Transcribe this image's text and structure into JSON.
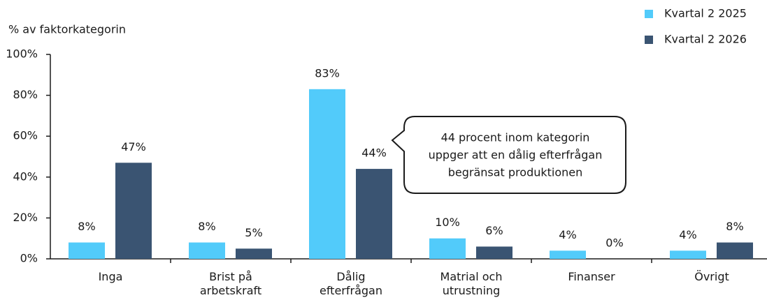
{
  "chart_data": {
    "type": "bar",
    "y_label": "% av faktorkategorin",
    "categories": [
      "Inga",
      "Brist på arbetskraft",
      "Dålig efterfrågan",
      "Matrial och utrustning",
      "Finanser",
      "Övrigt"
    ],
    "series": [
      {
        "name": "Kvartal 2 2025",
        "color": "#52cbfa",
        "values": [
          8,
          8,
          83,
          10,
          4,
          4
        ],
        "value_labels": [
          "8%",
          "8%",
          "83%",
          "10%",
          "4%",
          "4%"
        ]
      },
      {
        "name": "Kvartal 2 2026",
        "color": "#3a5472",
        "values": [
          47,
          5,
          44,
          6,
          0,
          8
        ],
        "value_labels": [
          "47%",
          "5%",
          "44%",
          "6%",
          "0%",
          "8%"
        ]
      }
    ],
    "ylim": [
      0,
      100
    ],
    "yticks": [
      {
        "value": 0,
        "label": "0%"
      },
      {
        "value": 20,
        "label": "20%"
      },
      {
        "value": 40,
        "label": "40%"
      },
      {
        "value": 60,
        "label": "60%"
      },
      {
        "value": 80,
        "label": "80%"
      },
      {
        "value": 100,
        "label": "100%"
      }
    ],
    "annotation": [
      "44 procent inom kategorin",
      "uppger att en dålig efterfrågan",
      "begränsat produktionen"
    ],
    "legend": "top-right"
  }
}
